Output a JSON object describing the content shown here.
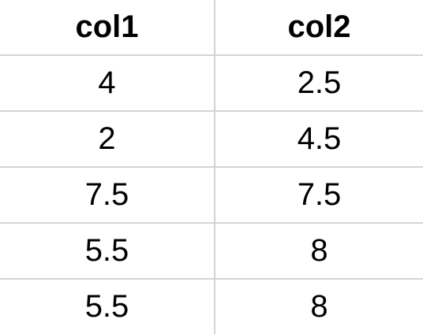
{
  "table": {
    "headers": [
      "col1",
      "col2"
    ],
    "rows": [
      [
        "4",
        "2.5"
      ],
      [
        "2",
        "4.5"
      ],
      [
        "7.5",
        "7.5"
      ],
      [
        "5.5",
        "8"
      ],
      [
        "5.5",
        "8"
      ]
    ]
  },
  "colors": {
    "gridline": "#d4d4d4",
    "text": "#000000",
    "background": "#ffffff"
  }
}
